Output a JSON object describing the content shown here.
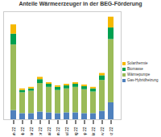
{
  "chart_data": {
    "type": "bar",
    "stacked": true,
    "title": "Anteile Wärmeerzeuger in der BEG-Förderung",
    "categories": [
      "Jan 22",
      "Feb 22",
      "Mär 22",
      "Apr 22",
      "Mai 22",
      "Jun 22",
      "Jul 22",
      "Aug 22",
      "Sep 22",
      "Okt 22",
      "Nov 22",
      "Dez 22"
    ],
    "series": [
      {
        "name": "Gas-Hybridheizung",
        "color": "#4f81bd",
        "values": [
          12,
          8,
          8,
          10,
          9,
          8,
          9,
          9,
          8,
          8,
          11,
          22
        ]
      },
      {
        "name": "Wärmepumpe",
        "color": "#9bbb59",
        "values": [
          85,
          27,
          29,
          37,
          33,
          30,
          31,
          33,
          31,
          28,
          40,
          82
        ]
      },
      {
        "name": "Biomasse",
        "color": "#00a050",
        "values": [
          14,
          3,
          3,
          5,
          4,
          4,
          4,
          4,
          4,
          4,
          6,
          15
        ]
      },
      {
        "name": "Solarthermie",
        "color": "#f5b800",
        "values": [
          12,
          2,
          2,
          3,
          2,
          2,
          2,
          2,
          2,
          2,
          3,
          14
        ]
      }
    ],
    "ylim": [
      0,
      140
    ],
    "tick_labels": "x",
    "legend": "right",
    "grid": false
  }
}
